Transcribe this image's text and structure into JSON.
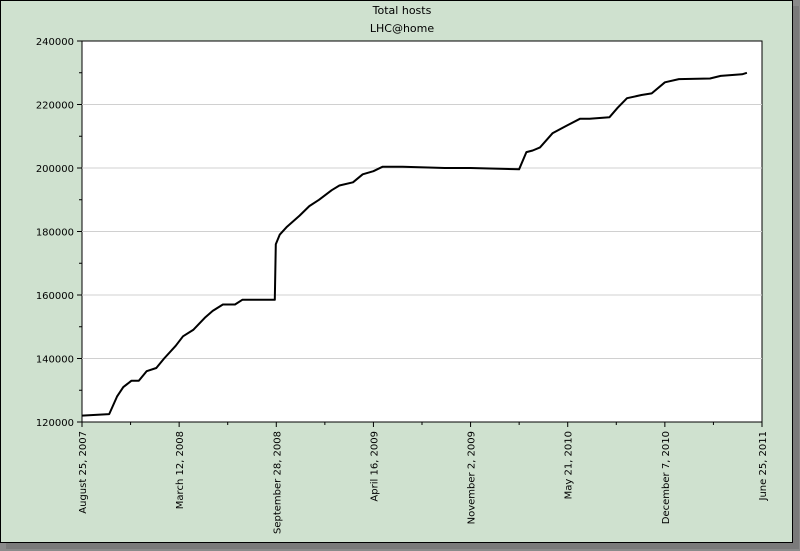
{
  "chart_data": {
    "type": "line",
    "title": "Total hosts",
    "subtitle": "LHC@home",
    "xlabel": "",
    "ylabel": "",
    "ylim": [
      120000,
      240000
    ],
    "yticks": [
      "120000",
      "140000",
      "160000",
      "180000",
      "200000",
      "220000",
      "240000"
    ],
    "xticks": [
      "August 25, 2007",
      "March 12, 2008",
      "September 28, 2008",
      "April 16, 2009",
      "November 2, 2009",
      "May 21, 2010",
      "December 7, 2010",
      "June 25, 2011"
    ],
    "xlim": [
      "2007-08-25",
      "2011-06-25"
    ],
    "grid": "horizontal",
    "legend": "none",
    "line_color": "#000000",
    "series": [
      {
        "x": [
          "2007-08-25",
          "2007-10-20",
          "2007-11-05",
          "2007-11-18",
          "2007-12-05",
          "2007-12-20",
          "2008-01-05",
          "2008-01-25",
          "2008-02-10",
          "2008-03-05",
          "2008-03-20",
          "2008-04-10",
          "2008-05-05",
          "2008-05-20",
          "2008-06-10",
          "2008-07-05",
          "2008-07-20",
          "2008-09-25",
          "2008-09-27",
          "2008-10-05",
          "2008-10-20",
          "2008-11-15",
          "2008-12-05",
          "2008-12-25",
          "2009-01-20",
          "2009-02-05",
          "2009-03-05",
          "2009-03-25",
          "2009-04-16",
          "2009-05-05",
          "2009-06-15",
          "2009-09-10",
          "2009-11-02",
          "2010-02-10",
          "2010-02-25",
          "2010-03-10",
          "2010-03-25",
          "2010-04-20",
          "2010-05-21",
          "2010-06-15",
          "2010-07-05",
          "2010-08-15",
          "2010-09-01",
          "2010-09-20",
          "2010-10-20",
          "2010-11-10",
          "2010-12-07",
          "2011-01-05",
          "2011-03-10",
          "2011-04-01",
          "2011-05-15",
          "2011-05-25"
        ],
        "y": [
          122000,
          122500,
          128000,
          131000,
          133000,
          133000,
          136000,
          137000,
          140000,
          144000,
          147000,
          149000,
          153000,
          155000,
          157000,
          157000,
          158500,
          158500,
          176000,
          179000,
          181500,
          185000,
          188000,
          190000,
          193000,
          194500,
          195500,
          198000,
          199000,
          200400,
          200400,
          200000,
          200000,
          199600,
          205000,
          205500,
          206500,
          211000,
          213500,
          215500,
          215500,
          216000,
          219000,
          222000,
          223000,
          223500,
          227000,
          228000,
          228200,
          229000,
          229500,
          230000
        ]
      }
    ]
  }
}
